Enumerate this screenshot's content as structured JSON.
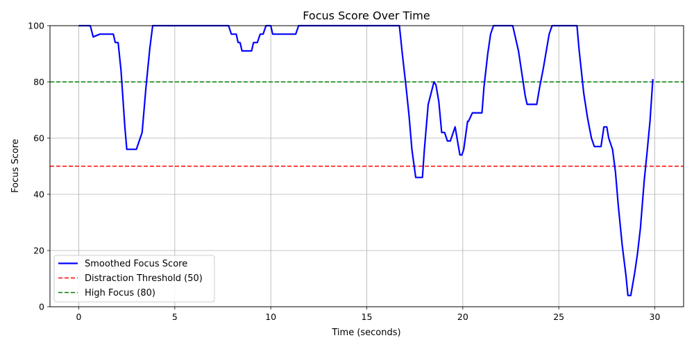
{
  "chart_data": {
    "type": "line",
    "title": "Focus Score Over Time",
    "xlabel": "Time (seconds)",
    "ylabel": "Focus Score",
    "xlim": [
      -1.5,
      31.5
    ],
    "ylim": [
      0,
      100
    ],
    "xticks": [
      0,
      5,
      10,
      15,
      20,
      25,
      30
    ],
    "yticks": [
      0,
      20,
      40,
      60,
      80,
      100
    ],
    "grid": true,
    "legend_position": "lower-left",
    "series": [
      {
        "name": "Smoothed Focus Score",
        "color": "#0000ff",
        "style": "solid",
        "x": [
          0,
          0.6,
          0.75,
          1.1,
          1.8,
          1.9,
          2.05,
          2.2,
          2.4,
          2.5,
          2.7,
          3.0,
          3.3,
          3.5,
          3.7,
          3.85,
          4.0,
          7.8,
          7.95,
          8.2,
          8.3,
          8.4,
          8.5,
          8.7,
          9.0,
          9.1,
          9.3,
          9.45,
          9.6,
          9.75,
          9.85,
          10.0,
          10.1,
          10.5,
          11.0,
          11.3,
          11.45,
          15.0,
          16.6,
          16.7,
          16.85,
          17.05,
          17.2,
          17.35,
          17.55,
          17.9,
          18.0,
          18.2,
          18.35,
          18.5,
          18.6,
          18.75,
          18.9,
          19.05,
          19.2,
          19.35,
          19.6,
          19.75,
          19.85,
          19.95,
          20.05,
          20.25,
          20.3,
          20.5,
          20.6,
          21.0,
          21.1,
          21.3,
          21.45,
          21.6,
          22.5,
          22.6,
          22.9,
          23.1,
          23.25,
          23.35,
          23.6,
          23.85,
          24.0,
          24.2,
          24.5,
          24.65,
          24.8,
          25.95,
          26.05,
          26.3,
          26.5,
          26.7,
          26.85,
          27.1,
          27.2,
          27.35,
          27.5,
          27.6,
          27.8,
          27.95,
          28.1,
          28.3,
          28.5,
          28.6,
          28.75,
          28.95,
          29.1,
          29.25,
          29.45,
          29.6,
          29.75,
          29.9
        ],
        "y": [
          100,
          100,
          96,
          97,
          97,
          94,
          94,
          84,
          64,
          56,
          56,
          56,
          62,
          78,
          92,
          100,
          100,
          100,
          97,
          97,
          94,
          94,
          91,
          91,
          91,
          94,
          94,
          97,
          97,
          100,
          100,
          100,
          97,
          97,
          97,
          97,
          100,
          100,
          100,
          100,
          90,
          78,
          68,
          56,
          46,
          46,
          56,
          72,
          76,
          80,
          79,
          73,
          62,
          62,
          59,
          59,
          64,
          58,
          54,
          54,
          56,
          66,
          66,
          69,
          69,
          69,
          78,
          90,
          97,
          100,
          100,
          100,
          91,
          82,
          75,
          72,
          72,
          72,
          78,
          85,
          97,
          100,
          100,
          100,
          92,
          76,
          67,
          60,
          57,
          57,
          57,
          64,
          64,
          60,
          56,
          48,
          36,
          22,
          11,
          4,
          4,
          12,
          19,
          28,
          45,
          55,
          66,
          81
        ]
      },
      {
        "name": "Distraction Threshold (50)",
        "color": "#ff0000",
        "style": "dashed",
        "hline": 50
      },
      {
        "name": "High Focus (80)",
        "color": "#008000",
        "style": "dashed",
        "hline": 80
      }
    ]
  }
}
